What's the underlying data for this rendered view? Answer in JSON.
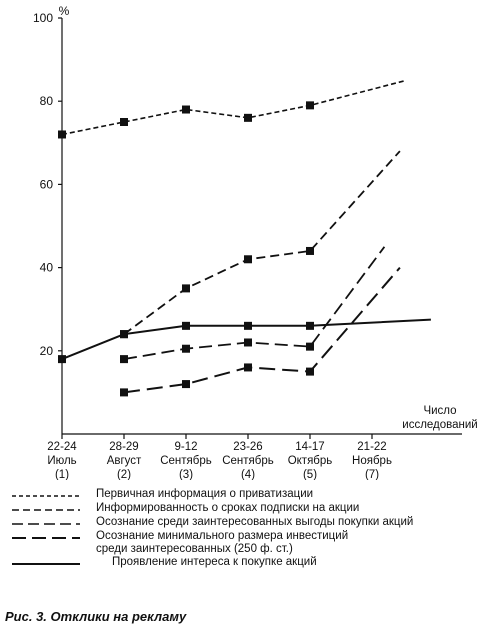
{
  "chart_data": {
    "type": "line",
    "ylabel": "%",
    "ylim": [
      0,
      100
    ],
    "yticks": [
      20,
      40,
      60,
      80,
      100
    ],
    "xlabel": "Число\nисследований",
    "categories": [
      {
        "dates": "22-24",
        "month": "Июль",
        "num": "(1)"
      },
      {
        "dates": "28-29",
        "month": "Август",
        "num": "(2)"
      },
      {
        "dates": "9-12",
        "month": "Сентябрь",
        "num": "(3)"
      },
      {
        "dates": "23-26",
        "month": "Сентябрь",
        "num": "(4)"
      },
      {
        "dates": "14-17",
        "month": "Октябрь",
        "num": "(5)"
      },
      {
        "dates": "21-22",
        "month": "Ноябрь",
        "num": "(7)"
      }
    ],
    "series": [
      {
        "name": "Первичная информация о приватизации",
        "style": "short-dash",
        "points": [
          [
            1,
            72
          ],
          [
            2,
            75
          ],
          [
            3,
            78
          ],
          [
            4,
            76
          ],
          [
            5,
            79
          ]
        ],
        "trend": [
          [
            5,
            79
          ],
          [
            6.55,
            85
          ]
        ]
      },
      {
        "name": "Информированность о сроках подписки на акции",
        "style": "medium-dash",
        "points": [
          [
            2,
            24
          ],
          [
            3,
            35
          ],
          [
            4,
            42
          ],
          [
            5,
            44
          ]
        ],
        "trend": [
          [
            5,
            44
          ],
          [
            6.45,
            68
          ]
        ]
      },
      {
        "name": "Осознание среди заинтересованных выгоды покупки акций",
        "style": "long-dash",
        "points": [
          [
            2,
            18
          ],
          [
            3,
            20.5
          ],
          [
            4,
            22
          ],
          [
            5,
            21
          ]
        ],
        "trend": [
          [
            5,
            21
          ],
          [
            6.2,
            45
          ]
        ]
      },
      {
        "name": "Осознание минимального размера инвестиций\nсреди заинтересованных (250 ф. ст.)",
        "style": "longer-dash",
        "points": [
          [
            2,
            10
          ],
          [
            3,
            12
          ],
          [
            4,
            16
          ],
          [
            5,
            15
          ]
        ],
        "trend": [
          [
            5,
            15
          ],
          [
            6.45,
            40
          ]
        ]
      },
      {
        "name": "Проявление интереса к покупке акций",
        "style": "solid",
        "points": [
          [
            1,
            18
          ],
          [
            2,
            24
          ],
          [
            3,
            26
          ],
          [
            4,
            26
          ],
          [
            5,
            26
          ]
        ],
        "trend": [
          [
            5,
            26
          ],
          [
            6.95,
            27.5
          ]
        ]
      }
    ]
  },
  "caption": "Рис. 3. Отклики на рекламу"
}
